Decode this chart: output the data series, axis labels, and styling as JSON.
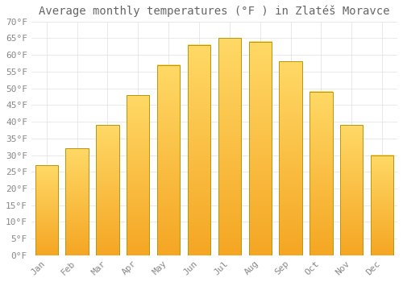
{
  "title": "Average monthly temperatures (°F ) in Zlatéš Moravce",
  "months": [
    "Jan",
    "Feb",
    "Mar",
    "Apr",
    "May",
    "Jun",
    "Jul",
    "Aug",
    "Sep",
    "Oct",
    "Nov",
    "Dec"
  ],
  "values": [
    27,
    32,
    39,
    48,
    57,
    63,
    65,
    64,
    58,
    49,
    39,
    30
  ],
  "bar_color_bottom": "#F5A623",
  "bar_color_top": "#FFD966",
  "bar_edge_color": "#B8860B",
  "background_color": "#FFFFFF",
  "grid_color": "#E0E0E0",
  "text_color": "#888888",
  "title_color": "#666666",
  "ylim": [
    0,
    70
  ],
  "yticks": [
    0,
    5,
    10,
    15,
    20,
    25,
    30,
    35,
    40,
    45,
    50,
    55,
    60,
    65,
    70
  ],
  "title_fontsize": 10,
  "tick_fontsize": 8,
  "bar_width": 0.75
}
